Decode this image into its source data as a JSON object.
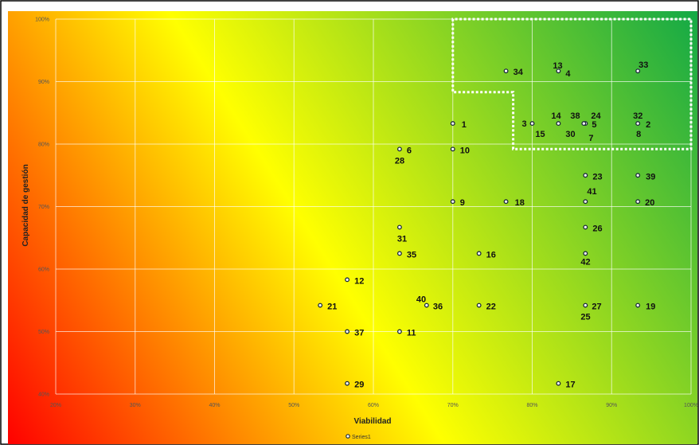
{
  "chart_data": {
    "type": "scatter",
    "title": "",
    "xlabel": "Viabilidad",
    "ylabel": "Capacidad de gestión",
    "xlim": [
      20,
      100
    ],
    "ylim": [
      40,
      100
    ],
    "x_ticks": [
      "20%",
      "30%",
      "40%",
      "50%",
      "60%",
      "70%",
      "80%",
      "90%",
      "100%"
    ],
    "y_ticks": [
      "40%",
      "50%",
      "60%",
      "70%",
      "80%",
      "90%",
      "100%"
    ],
    "grid": true,
    "background": "red-yellow-green diagonal gradient",
    "colors": {
      "low": "#ff0000",
      "mid": "#ffff00",
      "high": "#10a847",
      "grid": "#ffffff",
      "highlight_region": "#ffffff"
    },
    "highlight_region": [
      [
        77,
        100
      ],
      [
        100,
        100
      ],
      [
        100,
        79.2
      ],
      [
        77.6,
        79.2
      ],
      [
        77.6,
        88.3
      ],
      [
        70,
        88.3
      ],
      [
        70,
        100
      ]
    ],
    "legend": {
      "position": "bottom-center",
      "entries": [
        "Series1"
      ]
    },
    "points": [
      {
        "x": 70,
        "y": 83.3,
        "labels": [
          "1"
        ]
      },
      {
        "x": 93.3,
        "y": 83.3,
        "labels": [
          "32",
          "2",
          "8"
        ]
      },
      {
        "x": 80,
        "y": 83.3,
        "labels": [
          "3"
        ]
      },
      {
        "x": 83.3,
        "y": 91.7,
        "labels": [
          "13",
          "4"
        ]
      },
      {
        "x": 86.7,
        "y": 83.3,
        "labels": [
          "38",
          "24",
          "5",
          "7"
        ]
      },
      {
        "x": 63.3,
        "y": 79.2,
        "labels": [
          "6",
          "28"
        ]
      },
      {
        "x": 70,
        "y": 70.8,
        "labels": [
          "9"
        ]
      },
      {
        "x": 70,
        "y": 79.2,
        "labels": [
          "10"
        ]
      },
      {
        "x": 63.3,
        "y": 50,
        "labels": [
          "11"
        ]
      },
      {
        "x": 56.7,
        "y": 58.3,
        "labels": [
          "12"
        ]
      },
      {
        "x": 83.3,
        "y": 83.3,
        "labels": [
          "14",
          "15"
        ]
      },
      {
        "x": 86.5,
        "y": 83.3,
        "labels": [
          "30"
        ]
      },
      {
        "x": 73.3,
        "y": 62.5,
        "labels": [
          "16"
        ]
      },
      {
        "x": 83.3,
        "y": 41.7,
        "labels": [
          "17"
        ]
      },
      {
        "x": 76.7,
        "y": 70.8,
        "labels": [
          "18"
        ]
      },
      {
        "x": 93.3,
        "y": 54.2,
        "labels": [
          "19"
        ]
      },
      {
        "x": 93.3,
        "y": 70.8,
        "labels": [
          "20"
        ]
      },
      {
        "x": 53.3,
        "y": 54.2,
        "labels": [
          "21"
        ]
      },
      {
        "x": 73.3,
        "y": 54.2,
        "labels": [
          "22"
        ]
      },
      {
        "x": 86.7,
        "y": 75,
        "labels": [
          "23"
        ]
      },
      {
        "x": 86.7,
        "y": 66.7,
        "labels": [
          "26"
        ]
      },
      {
        "x": 86.7,
        "y": 54.2,
        "labels": [
          "27",
          "25"
        ]
      },
      {
        "x": 56.7,
        "y": 41.7,
        "labels": [
          "29"
        ]
      },
      {
        "x": 63.3,
        "y": 66.7,
        "labels": [
          "31"
        ]
      },
      {
        "x": 93.3,
        "y": 91.7,
        "labels": [
          "33"
        ]
      },
      {
        "x": 76.7,
        "y": 91.7,
        "labels": [
          "34"
        ]
      },
      {
        "x": 63.3,
        "y": 62.5,
        "labels": [
          "35"
        ]
      },
      {
        "x": 66.7,
        "y": 54.2,
        "labels": [
          "40",
          "36"
        ]
      },
      {
        "x": 56.7,
        "y": 50,
        "labels": [
          "37"
        ]
      },
      {
        "x": 93.3,
        "y": 75,
        "labels": [
          "39"
        ]
      },
      {
        "x": 86.7,
        "y": 70.8,
        "labels": [
          "41"
        ]
      },
      {
        "x": 86.7,
        "y": 62.5,
        "labels": [
          "42"
        ]
      }
    ]
  }
}
